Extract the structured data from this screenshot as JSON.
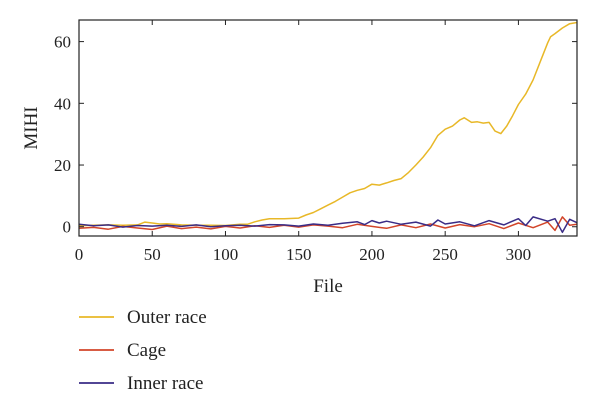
{
  "chart_data": {
    "type": "line",
    "xlabel": "File",
    "ylabel": "MIHI",
    "xlim": [
      0,
      340
    ],
    "ylim": [
      -3,
      67
    ],
    "xticks": [
      0,
      50,
      100,
      150,
      200,
      250,
      300
    ],
    "yticks": [
      0,
      20,
      40,
      60
    ],
    "grid": false,
    "legend_position": "bottom-left",
    "series": [
      {
        "name": "Outer race",
        "color": "#E8B828",
        "x": [
          0,
          10,
          20,
          30,
          40,
          45,
          50,
          55,
          60,
          70,
          80,
          90,
          100,
          110,
          115,
          120,
          125,
          130,
          140,
          150,
          155,
          160,
          165,
          170,
          175,
          180,
          185,
          190,
          195,
          200,
          205,
          210,
          215,
          220,
          225,
          230,
          235,
          240,
          245,
          250,
          255,
          260,
          263,
          268,
          272,
          276,
          280,
          284,
          288,
          292,
          296,
          300,
          305,
          310,
          315,
          320,
          322,
          325,
          330,
          335,
          340
        ],
        "y": [
          0.3,
          0.5,
          0.6,
          0.5,
          0.6,
          1.5,
          1.2,
          0.9,
          1.0,
          0.6,
          0.5,
          0.5,
          0.4,
          0.8,
          0.8,
          1.6,
          2.2,
          2.6,
          2.6,
          2.8,
          3.8,
          4.6,
          5.8,
          7.0,
          8.2,
          9.6,
          11.0,
          11.8,
          12.4,
          13.8,
          13.5,
          14.2,
          15.0,
          15.6,
          17.6,
          20.0,
          22.6,
          25.6,
          29.6,
          31.6,
          32.6,
          34.6,
          35.3,
          33.8,
          34.0,
          33.6,
          33.8,
          31.0,
          30.2,
          32.6,
          36.0,
          39.6,
          43.0,
          47.6,
          53.6,
          59.6,
          61.6,
          62.6,
          64.4,
          65.8,
          66.2
        ]
      },
      {
        "name": "Cage",
        "color": "#D2452A",
        "x": [
          0,
          10,
          20,
          30,
          40,
          50,
          60,
          70,
          80,
          90,
          100,
          110,
          120,
          130,
          140,
          150,
          160,
          170,
          180,
          190,
          200,
          210,
          220,
          230,
          240,
          250,
          260,
          270,
          280,
          290,
          300,
          310,
          320,
          325,
          330,
          335,
          340
        ],
        "y": [
          -0.5,
          -0.2,
          -0.8,
          0.1,
          -0.4,
          -0.9,
          0.2,
          -0.6,
          -0.1,
          -0.7,
          0.1,
          -0.4,
          0.3,
          -0.2,
          0.5,
          -0.1,
          0.6,
          0.2,
          -0.3,
          0.8,
          0.1,
          -0.5,
          0.6,
          -0.3,
          0.9,
          -0.4,
          0.7,
          0.0,
          1.0,
          -0.6,
          1.2,
          -0.3,
          1.5,
          -1.2,
          3.2,
          0.5,
          0.8
        ]
      },
      {
        "name": "Inner race",
        "color": "#3A2C86",
        "x": [
          0,
          10,
          20,
          30,
          40,
          50,
          60,
          70,
          80,
          90,
          100,
          110,
          120,
          130,
          140,
          150,
          160,
          170,
          180,
          190,
          195,
          200,
          205,
          210,
          220,
          230,
          240,
          245,
          250,
          260,
          270,
          280,
          290,
          300,
          305,
          310,
          320,
          325,
          330,
          335,
          340
        ],
        "y": [
          0.8,
          0.3,
          0.6,
          -0.1,
          0.4,
          0.2,
          0.5,
          0.1,
          0.6,
          0.0,
          0.3,
          0.5,
          0.2,
          0.7,
          0.6,
          0.2,
          0.9,
          0.5,
          1.1,
          1.6,
          0.7,
          2.0,
          1.2,
          1.8,
          0.8,
          1.5,
          0.2,
          2.2,
          0.9,
          1.6,
          0.3,
          2.0,
          0.6,
          2.6,
          0.4,
          3.2,
          1.8,
          2.6,
          -1.8,
          2.4,
          1.3
        ]
      }
    ]
  }
}
